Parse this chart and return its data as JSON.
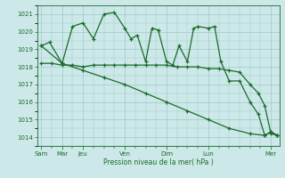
{
  "bg_color": "#cce8e8",
  "grid_color": "#a0c8c8",
  "line_color": "#1a6b2a",
  "title": "Pression niveau de la mer( hPa )",
  "ylim": [
    1013.5,
    1021.5
  ],
  "yticks": [
    1014,
    1015,
    1016,
    1017,
    1018,
    1019,
    1020,
    1021
  ],
  "major_x_positions": [
    0,
    1,
    2,
    4,
    6,
    8,
    11
  ],
  "major_x_labels": [
    "Sam",
    "Mar",
    "Jeu",
    "Ven",
    "Dim",
    "Lun",
    "Mer"
  ],
  "xlim": [
    -0.2,
    11.4
  ],
  "series1_x": [
    0,
    0.4,
    1.0,
    1.5,
    2.0,
    2.5,
    3.0,
    3.5,
    4.0,
    4.3,
    4.6,
    5.0,
    5.3,
    5.6,
    6.0,
    6.3,
    6.6,
    7.0,
    7.3,
    7.5,
    8.0,
    8.3,
    8.6,
    9.0,
    9.5,
    10.0,
    10.4,
    10.7,
    11.0,
    11.3
  ],
  "series1_y": [
    1019.2,
    1019.4,
    1018.2,
    1020.3,
    1020.5,
    1019.6,
    1021.0,
    1021.1,
    1020.2,
    1019.6,
    1019.8,
    1018.3,
    1020.2,
    1020.1,
    1018.3,
    1018.1,
    1019.2,
    1018.3,
    1020.2,
    1020.3,
    1020.2,
    1020.3,
    1018.3,
    1017.2,
    1017.2,
    1016.0,
    1015.3,
    1014.1,
    1014.3,
    1014.1
  ],
  "series2_x": [
    0,
    0.5,
    1.0,
    1.5,
    2.0,
    2.5,
    3.0,
    3.5,
    4.0,
    4.5,
    5.0,
    5.5,
    6.0,
    6.5,
    7.0,
    7.5,
    8.0,
    8.5,
    9.0,
    9.5,
    10.0,
    10.4,
    10.7,
    11.0,
    11.3
  ],
  "series2_y": [
    1018.2,
    1018.2,
    1018.1,
    1018.1,
    1018.0,
    1018.1,
    1018.1,
    1018.1,
    1018.1,
    1018.1,
    1018.1,
    1018.1,
    1018.1,
    1018.0,
    1018.0,
    1018.0,
    1017.9,
    1017.9,
    1017.8,
    1017.7,
    1017.0,
    1016.5,
    1015.8,
    1014.2,
    1014.1
  ],
  "series3_x": [
    0,
    1.0,
    2.0,
    3.0,
    4.0,
    5.0,
    6.0,
    7.0,
    8.0,
    9.0,
    10.0,
    10.7,
    11.0,
    11.3
  ],
  "series3_y": [
    1019.2,
    1018.2,
    1017.8,
    1017.4,
    1017.0,
    1016.5,
    1016.0,
    1015.5,
    1015.0,
    1014.5,
    1014.2,
    1014.1,
    1014.3,
    1014.1
  ]
}
